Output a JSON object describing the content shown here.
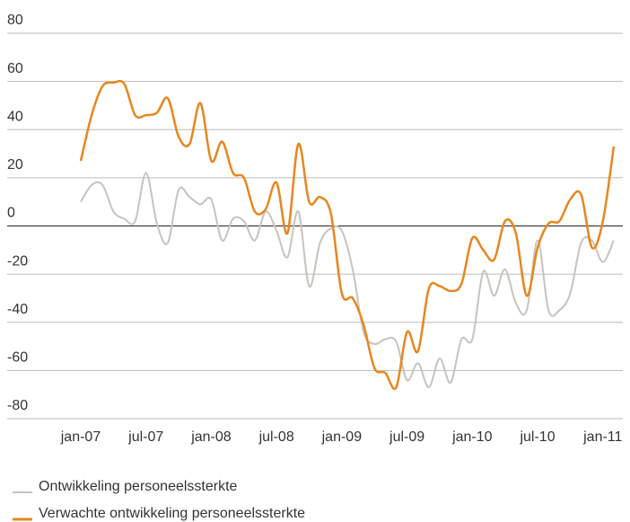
{
  "chart_data": {
    "type": "line",
    "categories": [
      "jan-07",
      null,
      null,
      null,
      null,
      null,
      "jul-07",
      null,
      null,
      null,
      null,
      null,
      "jan-08",
      null,
      null,
      null,
      null,
      null,
      "jul-08",
      null,
      null,
      null,
      null,
      null,
      "jan-09",
      null,
      null,
      null,
      null,
      null,
      "jul-09",
      null,
      null,
      null,
      null,
      null,
      "jan-10",
      null,
      null,
      null,
      null,
      null,
      "jul-10",
      null,
      null,
      null,
      null,
      null,
      "jan-11",
      null
    ],
    "series": [
      {
        "name": "Ontwikkeling personeelssterkte",
        "color": "#c8c3bd",
        "values": [
          10,
          17,
          17,
          6,
          3,
          2,
          22,
          1,
          -7,
          15,
          12,
          9,
          11,
          -6,
          3,
          2,
          -6,
          6,
          -2,
          -13,
          6,
          -25,
          -7,
          -1,
          -2,
          -18,
          -44,
          -49,
          -47,
          -48,
          -64,
          -57,
          -67,
          -55,
          -65,
          -47,
          -47,
          -19,
          -29,
          -18,
          -32,
          -35,
          -6,
          -35,
          -35,
          -28,
          -7,
          -6,
          -15,
          -6
        ]
      },
      {
        "name": "Verwachte ontwikkeling personeelssterkte",
        "color": "#e8861e",
        "values": [
          27,
          46,
          58,
          59.5,
          59,
          46,
          46,
          47,
          53,
          37,
          34,
          51,
          27,
          35,
          22,
          20,
          6,
          7,
          18,
          -3,
          34,
          10,
          12,
          5,
          -28,
          -30,
          -41,
          -59,
          -61,
          -67,
          -44,
          -52,
          -26,
          -25,
          -27,
          -24,
          -5,
          -10,
          -14,
          2,
          -3,
          -29,
          -9,
          1,
          2,
          11,
          13,
          -9,
          2,
          33
        ]
      }
    ],
    "ylim": [
      -80,
      80
    ],
    "yticks": [
      -80,
      -60,
      -40,
      -20,
      0,
      20,
      40,
      60,
      80
    ],
    "grid": true
  }
}
